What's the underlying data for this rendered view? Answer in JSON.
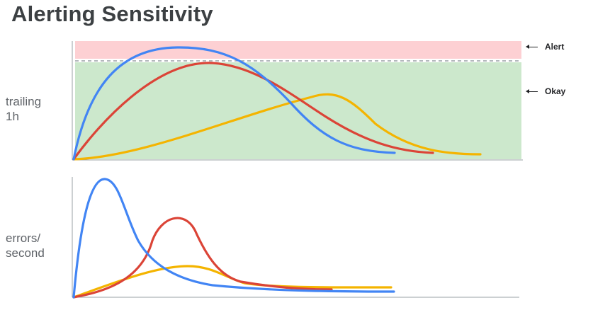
{
  "title": "Alerting Sensitivity",
  "panels": {
    "top": {
      "ylabel_lines": [
        "trailing",
        "1h"
      ],
      "zones": [
        {
          "name": "Alert",
          "color": "#fdd0d3"
        },
        {
          "name": "Okay",
          "color": "#cce8cc"
        }
      ],
      "threshold_color": "#9aa0a6"
    },
    "bottom": {
      "ylabel_lines": [
        "errors/",
        "second"
      ]
    }
  },
  "colors": {
    "blue": "#4285f4",
    "red": "#db4437",
    "yellow": "#f4b400",
    "axis": "#9aa0a6"
  },
  "chart_data": [
    {
      "type": "line",
      "panel": "trailing 1h",
      "x": [
        0,
        20,
        40,
        60,
        80,
        100
      ],
      "series": [
        {
          "color": "blue",
          "values": [
            0,
            0.88,
            1.0,
            0.7,
            0.2,
            0.05
          ]
        },
        {
          "color": "red",
          "values": [
            0,
            0.55,
            0.82,
            0.75,
            0.35,
            0.05
          ]
        },
        {
          "color": "yellow",
          "values": [
            0,
            0.1,
            0.28,
            0.5,
            0.58,
            0.06
          ]
        }
      ]
    },
    {
      "type": "line",
      "panel": "errors/second",
      "x": [
        0,
        20,
        40,
        60,
        80,
        100
      ],
      "series": [
        {
          "color": "blue",
          "values": [
            0,
            1.0,
            0.35,
            0.06,
            0.05,
            0.05
          ]
        },
        {
          "color": "red",
          "values": [
            0,
            0.1,
            0.72,
            0.15,
            0.06,
            0.06
          ]
        },
        {
          "color": "yellow",
          "values": [
            0,
            0.12,
            0.27,
            0.1,
            0.08,
            0.08
          ]
        }
      ]
    }
  ]
}
